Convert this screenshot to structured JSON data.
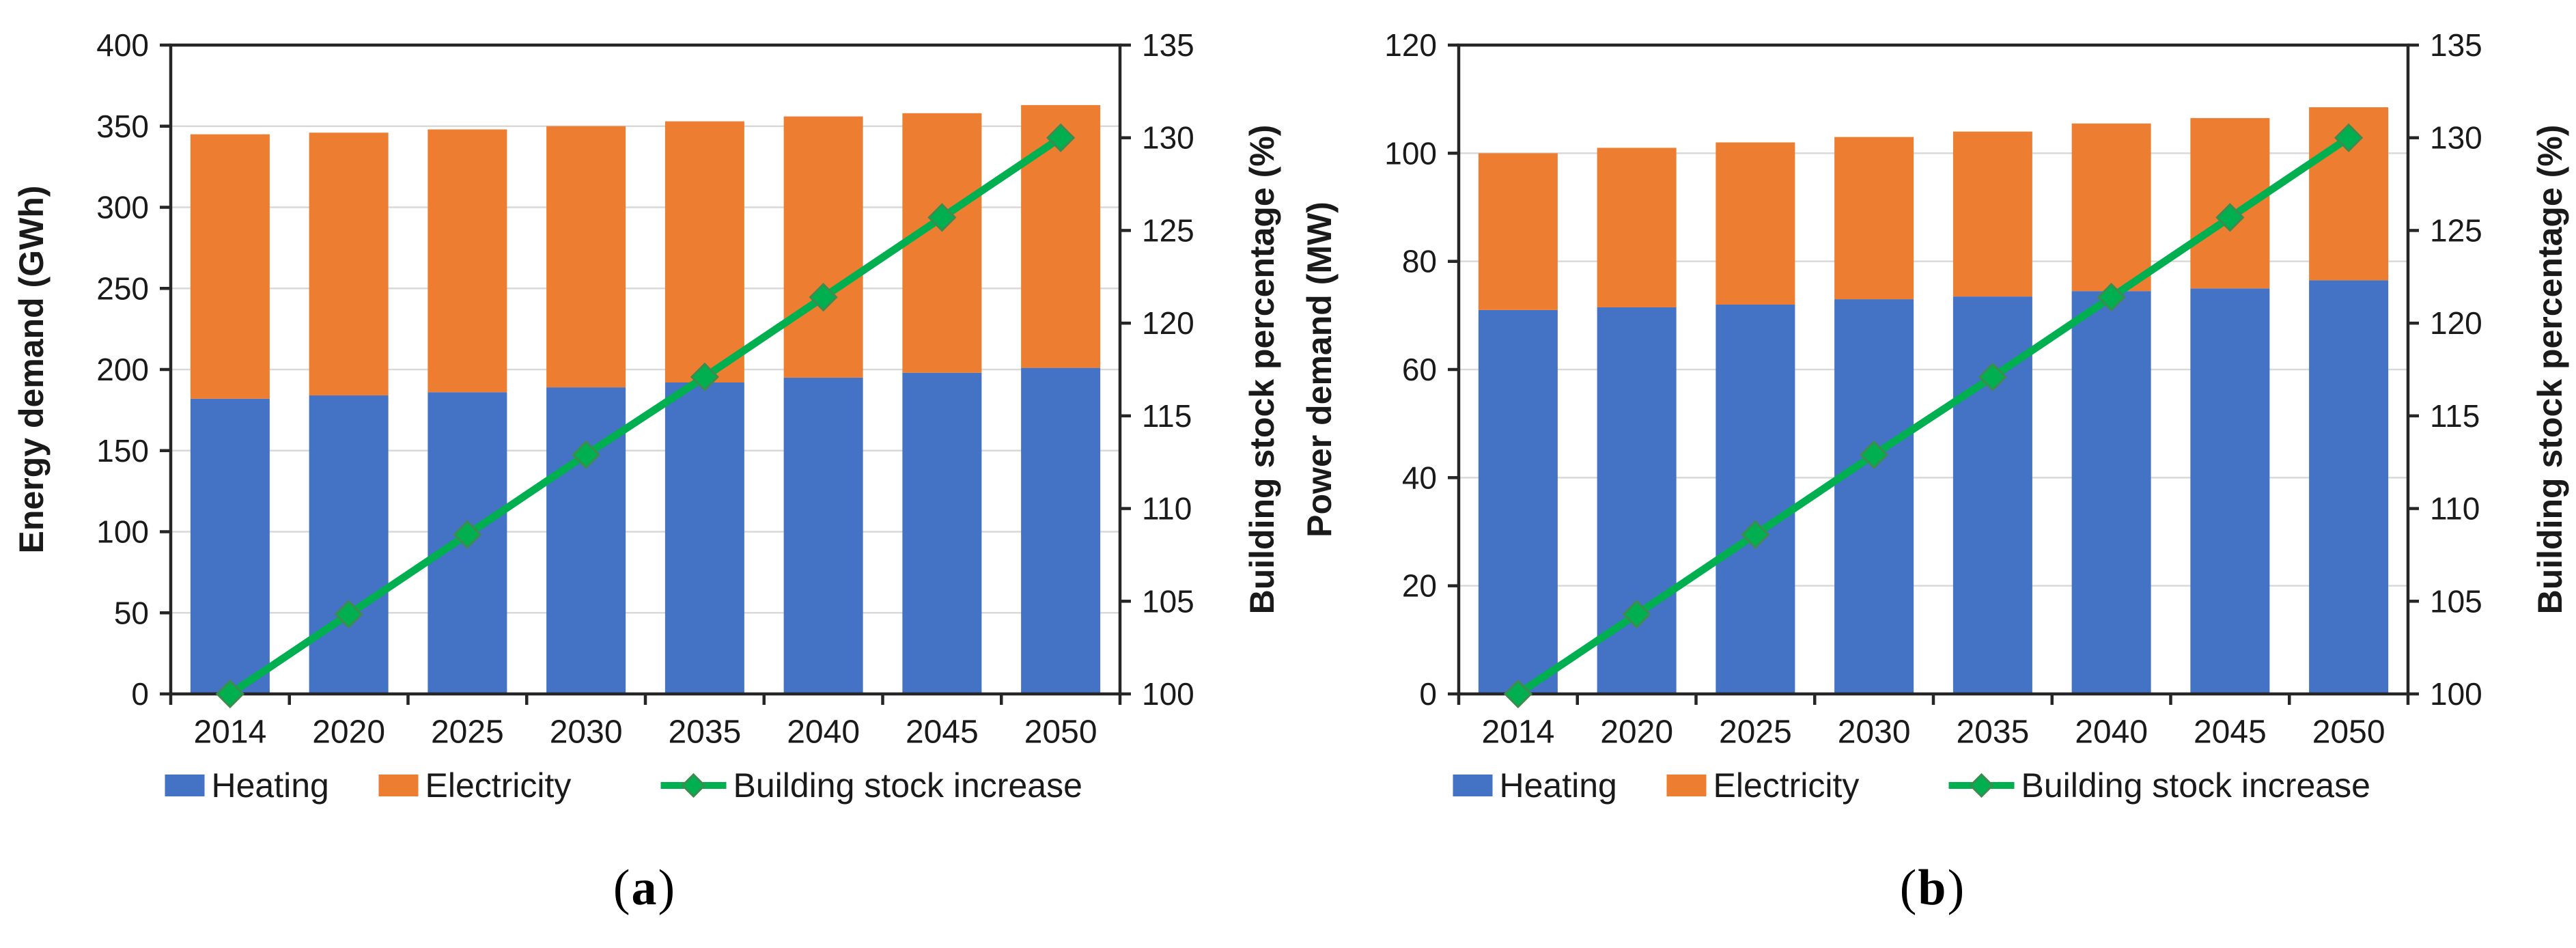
{
  "panels": [
    {
      "id": "a",
      "caption": {
        "open": "(",
        "letter": "a",
        "close": ")"
      }
    },
    {
      "id": "b",
      "caption": {
        "open": "(",
        "letter": "b",
        "close": ")"
      }
    }
  ],
  "colors": {
    "heating": "#4472C4",
    "electricity": "#ED7D31",
    "line": "#00B050",
    "marker_stroke": "#3d8b4f",
    "grid": "#D9D9D9",
    "axis": "#262626",
    "text": "#1a1a1a"
  },
  "chart_data": [
    {
      "type": "bar",
      "combo": "stacked-bar+line",
      "title": "",
      "categories": [
        "2014",
        "2020",
        "2025",
        "2030",
        "2035",
        "2040",
        "2045",
        "2050"
      ],
      "series": [
        {
          "name": "Heating",
          "type": "bar",
          "axis": "left",
          "color": "#4472C4",
          "values": [
            182,
            184,
            186,
            189,
            192,
            195,
            198,
            201
          ]
        },
        {
          "name": "Electricity",
          "type": "bar",
          "axis": "left",
          "color": "#ED7D31",
          "values": [
            163,
            162,
            162,
            161,
            161,
            161,
            160,
            162
          ]
        },
        {
          "name": "Building stock increase",
          "type": "line",
          "axis": "right",
          "color": "#00B050",
          "marker": "diamond",
          "values": [
            100,
            104.3,
            108.6,
            112.9,
            117.1,
            121.4,
            125.7,
            130
          ]
        }
      ],
      "xlabel": "",
      "ylabel_left": "Energy demand (GWh)",
      "ylabel_right": "Building stock percentage (%)",
      "ylim_left": [
        0,
        400
      ],
      "ylim_right": [
        100,
        135
      ],
      "left_ticks": [
        0,
        50,
        100,
        150,
        200,
        250,
        300,
        350,
        400
      ],
      "right_ticks": [
        100,
        105,
        110,
        115,
        120,
        125,
        130,
        135
      ],
      "grid": true,
      "legend_position": "bottom"
    },
    {
      "type": "bar",
      "combo": "stacked-bar+line",
      "title": "",
      "categories": [
        "2014",
        "2020",
        "2025",
        "2030",
        "2035",
        "2040",
        "2045",
        "2050"
      ],
      "series": [
        {
          "name": "Heating",
          "type": "bar",
          "axis": "left",
          "color": "#4472C4",
          "values": [
            71,
            71.5,
            72,
            73,
            73.5,
            74.5,
            75,
            76.5
          ]
        },
        {
          "name": "Electricity",
          "type": "bar",
          "axis": "left",
          "color": "#ED7D31",
          "values": [
            29,
            29.5,
            30,
            30,
            30.5,
            31,
            31.5,
            32
          ]
        },
        {
          "name": "Building stock increase",
          "type": "line",
          "axis": "right",
          "color": "#00B050",
          "marker": "diamond",
          "values": [
            100,
            104.3,
            108.6,
            112.9,
            117.1,
            121.4,
            125.7,
            130
          ]
        }
      ],
      "xlabel": "",
      "ylabel_left": "Power demand (MW)",
      "ylabel_right": "Building stock percentage (%)",
      "ylim_left": [
        0,
        120
      ],
      "ylim_right": [
        100,
        135
      ],
      "left_ticks": [
        0,
        20,
        40,
        60,
        80,
        100,
        120
      ],
      "right_ticks": [
        100,
        105,
        110,
        115,
        120,
        125,
        130,
        135
      ],
      "grid": true,
      "legend_position": "bottom"
    }
  ]
}
